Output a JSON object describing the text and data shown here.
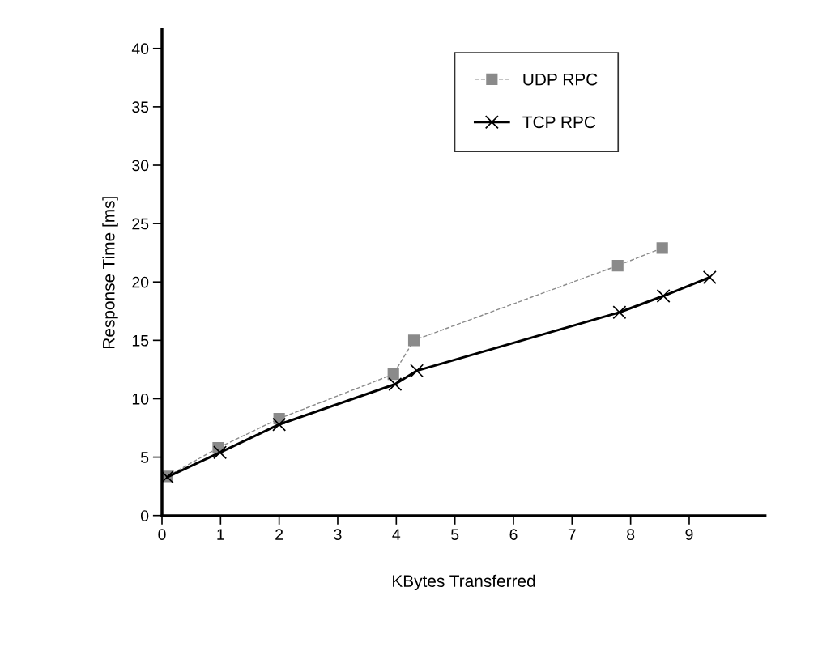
{
  "chart_data": {
    "type": "line",
    "xlabel": "KBytes Transferred",
    "ylabel": "Response Time [ms]",
    "xlim": [
      0,
      10.3
    ],
    "ylim": [
      0,
      41.6
    ],
    "xticks": [
      0,
      1,
      2,
      3,
      4,
      5,
      6,
      7,
      8,
      9
    ],
    "yticks": [
      0,
      5,
      10,
      15,
      20,
      25,
      30,
      35,
      40
    ],
    "grid": false,
    "legend": "top right",
    "series": [
      {
        "name": "UDP RPC",
        "color": "#8a8a8a",
        "marker": "square",
        "line_style": "dashed",
        "x": [
          0.09,
          0.96,
          2.0,
          3.95,
          4.3,
          7.78,
          8.54
        ],
        "values": [
          3.35,
          5.8,
          8.3,
          12.1,
          15.0,
          21.4,
          22.9
        ]
      },
      {
        "name": "TCP RPC",
        "color": "#000000",
        "marker": "cross",
        "line_style": "solid",
        "x": [
          0.09,
          0.99,
          2.0,
          3.98,
          4.35,
          7.81,
          8.56,
          9.35
        ],
        "values": [
          3.3,
          5.4,
          7.8,
          11.25,
          12.4,
          17.4,
          18.8,
          20.4
        ]
      }
    ]
  }
}
